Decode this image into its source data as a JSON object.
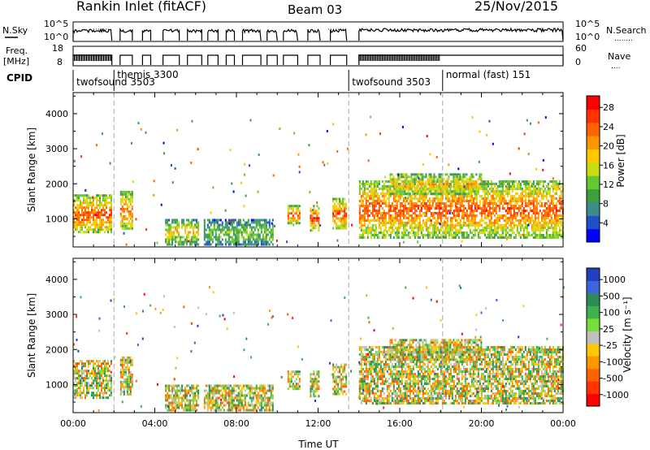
{
  "header": {
    "station": "Rankin Inlet (fitACF)",
    "beam": "Beam 03",
    "date": "25/Nov/2015"
  },
  "top_panels": {
    "nsky": {
      "left_label": "N.Sky",
      "ticks_left": [
        "10^5",
        "10^0"
      ],
      "ticks_right": [
        "10^5",
        "10^0"
      ],
      "right_label": "N.Search",
      "right_key": "........"
    },
    "freq": {
      "left_label_1": "Freq.",
      "left_label_2": "[MHz]",
      "ticks_left": [
        "18",
        "8"
      ],
      "ticks_right": [
        "60",
        "0"
      ],
      "right_label": "Nave",
      "right_key": "...."
    },
    "cpid": {
      "label": "CPID",
      "programs": [
        {
          "name": "twofsound 3503",
          "start": 0.0
        },
        {
          "name": "themis 3300",
          "start": 2.0
        },
        {
          "name": "twofsound 3503",
          "start": 13.5
        },
        {
          "name": "normal (fast) 151",
          "start": 18.1
        }
      ]
    }
  },
  "chart_data": [
    {
      "type": "heatmap",
      "name": "power",
      "ylabel": "Slant Range [km]",
      "xlabel": "",
      "x_unit": "hours UT",
      "xlim": [
        0,
        24
      ],
      "ylim": [
        200,
        4600
      ],
      "yticks": [
        1000,
        2000,
        3000,
        4000
      ],
      "xticks": [
        "00:00",
        "04:00",
        "08:00",
        "12:00",
        "16:00",
        "20:00",
        "00:00"
      ],
      "colorbar": {
        "label": "Power [dB]",
        "ticks": [
          "4",
          "8",
          "12",
          "16",
          "20",
          "24",
          "28"
        ],
        "colors": [
          "#0000ff",
          "#1e50c8",
          "#3c8c8c",
          "#3ca03c",
          "#64c832",
          "#c8dc14",
          "#ffc800",
          "#ff9600",
          "#ff6400",
          "#ff3200",
          "#ff0000"
        ]
      },
      "segments": [
        {
          "t0": 0.0,
          "t1": 1.9,
          "r0": 600,
          "r1": 1700,
          "level": 0.85
        },
        {
          "t0": 2.3,
          "t1": 2.9,
          "r0": 700,
          "r1": 1800,
          "level": 0.8
        },
        {
          "t0": 4.5,
          "t1": 6.1,
          "r0": 300,
          "r1": 1000,
          "level": 0.6
        },
        {
          "t0": 6.4,
          "t1": 9.8,
          "r0": 250,
          "r1": 1000,
          "level": 0.4
        },
        {
          "t0": 10.5,
          "t1": 11.1,
          "r0": 900,
          "r1": 1400,
          "level": 0.85
        },
        {
          "t0": 11.6,
          "t1": 12.0,
          "r0": 700,
          "r1": 1400,
          "level": 0.9
        },
        {
          "t0": 12.7,
          "t1": 13.4,
          "r0": 700,
          "r1": 1600,
          "level": 0.85
        },
        {
          "t0": 14.0,
          "t1": 24.0,
          "r0": 500,
          "r1": 2100,
          "level": 0.85
        },
        {
          "t0": 15.5,
          "t1": 20.0,
          "r0": 1700,
          "r1": 2300,
          "level": 0.7
        }
      ]
    },
    {
      "type": "heatmap",
      "name": "velocity",
      "ylabel": "Slant Range [km]",
      "xlabel": "Time UT",
      "x_unit": "hours UT",
      "xlim": [
        0,
        24
      ],
      "ylim": [
        200,
        4600
      ],
      "yticks": [
        1000,
        2000,
        3000,
        4000
      ],
      "xticks": [
        "00:00",
        "04:00",
        "08:00",
        "12:00",
        "16:00",
        "20:00",
        "00:00"
      ],
      "colorbar": {
        "label": "Velocity [m s⁻¹]",
        "ticks": [
          "1000",
          "500",
          "100",
          "25",
          "-25",
          "-100",
          "-500",
          "-1000"
        ],
        "colors": [
          "#2040c0",
          "#3c64dc",
          "#2e8b57",
          "#3cb44b",
          "#78dc3c",
          "#c0c0c0",
          "#ffc800",
          "#ff9600",
          "#ff6400",
          "#ff3200",
          "#ff0000"
        ]
      },
      "segments": [
        {
          "t0": 0.0,
          "t1": 1.9,
          "r0": 600,
          "r1": 1700,
          "level": 0.5
        },
        {
          "t0": 2.3,
          "t1": 2.9,
          "r0": 700,
          "r1": 1800,
          "level": 0.5
        },
        {
          "t0": 4.5,
          "t1": 6.1,
          "r0": 300,
          "r1": 1000,
          "level": 0.5
        },
        {
          "t0": 6.4,
          "t1": 9.8,
          "r0": 250,
          "r1": 1000,
          "level": 0.5
        },
        {
          "t0": 10.5,
          "t1": 11.1,
          "r0": 900,
          "r1": 1400,
          "level": 0.5
        },
        {
          "t0": 11.6,
          "t1": 12.0,
          "r0": 700,
          "r1": 1400,
          "level": 0.5
        },
        {
          "t0": 12.7,
          "t1": 13.4,
          "r0": 700,
          "r1": 1600,
          "level": 0.5
        },
        {
          "t0": 14.0,
          "t1": 24.0,
          "r0": 500,
          "r1": 2100,
          "level": 0.5
        },
        {
          "t0": 15.5,
          "t1": 20.0,
          "r0": 1700,
          "r1": 2300,
          "level": 0.5
        }
      ]
    }
  ]
}
